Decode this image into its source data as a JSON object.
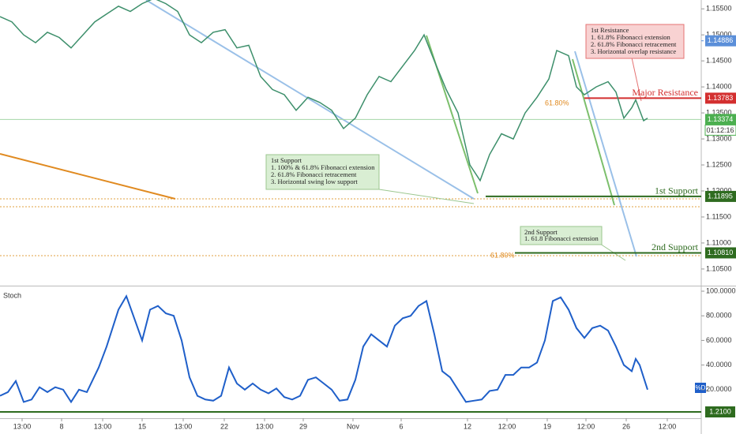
{
  "chart_data": [
    {
      "type": "line",
      "color": "#3d8f6b",
      "x": [
        0,
        3.75,
        7.5,
        11.25,
        15,
        18.75,
        22.5,
        26.25,
        30,
        33.75,
        37.5,
        41.25,
        45,
        48.75,
        52.5,
        56.25,
        60,
        63.75,
        67.5,
        71.25,
        75,
        78.75,
        82.5,
        86.25,
        90,
        93.75,
        97.5,
        101.25,
        105,
        108.75,
        112.5,
        116.25,
        120,
        123.75,
        127.5,
        131.25,
        134.25,
        137.5,
        141.25,
        145,
        148.75,
        152,
        155,
        158.75,
        162.5,
        166.25,
        170,
        173.75,
        176.25,
        180,
        182.5,
        185,
        188.75,
        192.5,
        195,
        197.5,
        200,
        201.25,
        203.75,
        205
      ],
      "values": [
        1.1535,
        1.1525,
        1.15,
        1.1485,
        1.1505,
        1.1495,
        1.1475,
        1.15,
        1.1525,
        1.154,
        1.1555,
        1.1545,
        1.156,
        1.157,
        1.156,
        1.1545,
        1.15,
        1.1485,
        1.1505,
        1.151,
        1.1475,
        1.148,
        1.142,
        1.1395,
        1.1385,
        1.1355,
        1.138,
        1.137,
        1.1355,
        1.132,
        1.134,
        1.1385,
        1.142,
        1.141,
        1.144,
        1.147,
        1.15,
        1.145,
        1.1395,
        1.135,
        1.125,
        1.122,
        1.127,
        1.131,
        1.13,
        1.135,
        1.138,
        1.1415,
        1.147,
        1.146,
        1.14,
        1.1385,
        1.14,
        1.141,
        1.139,
        1.134,
        1.136,
        1.1375,
        1.1335,
        1.134
      ],
      "xlim": [
        0,
        222
      ],
      "ylim": [
        1.1018,
        1.1567
      ],
      "yticks": [
        {
          "value": 1.155,
          "label": "1.15500"
        },
        {
          "value": 1.15,
          "label": "1.15000"
        },
        {
          "value": 1.145,
          "label": "1.14500"
        },
        {
          "value": 1.14,
          "label": "1.14000"
        },
        {
          "value": 1.135,
          "label": "1.13500"
        },
        {
          "value": 1.13,
          "label": "1.13000"
        },
        {
          "value": 1.125,
          "label": "1.12500"
        },
        {
          "value": 1.12,
          "label": "1.12000"
        },
        {
          "value": 1.115,
          "label": "1.11500"
        },
        {
          "value": 1.11,
          "label": "1.11000"
        },
        {
          "value": 1.105,
          "label": "1.10500"
        }
      ],
      "levels": [
        {
          "value": 1.14886,
          "label": "1.14886",
          "color": "#5b8fd9"
        },
        {
          "value": 1.13783,
          "label": "1.13783",
          "color": "#d32f2f",
          "name": "Major Resistance"
        },
        {
          "value": 1.13374,
          "label": "1.13374",
          "color": "#4caf50"
        },
        {
          "value": 1.11895,
          "label": "1.11895",
          "color": "#2e6b1f",
          "name": "1st Support"
        },
        {
          "value": 1.1081,
          "label": "1.10810",
          "color": "#2e6b1f",
          "name": "2nd Support"
        }
      ],
      "countdown": "01:12:16",
      "fib_labels": [
        "61.80%",
        "61.80%"
      ],
      "notes": [
        {
          "title": "1st Resistance",
          "lines": [
            "1. 61.8% Fibonacci extension",
            "2. 61.8% Fibonacci retracement",
            "3. Horizontal overlap resistance"
          ]
        },
        {
          "title": "1st Support",
          "lines": [
            "1. 100% & 61.8% Fibonacci extension",
            "2. 61.8% Fibonacci retracement",
            "3. Horizontal swing low support"
          ]
        },
        {
          "title": "2nd Support",
          "lines": [
            "1. 61.8 Fibonacci extension"
          ]
        }
      ]
    },
    {
      "type": "line",
      "title": "Stoch",
      "color": "#1f5fc9",
      "legend": "%D",
      "level_label": "1.2100",
      "x": [
        0,
        2.5,
        5,
        7.5,
        10,
        12.5,
        15,
        17.5,
        20,
        22.5,
        25,
        27.5,
        31.25,
        33.75,
        37.5,
        40,
        42.5,
        45,
        47.5,
        50,
        52.5,
        55,
        57.5,
        60,
        62.5,
        65,
        67.5,
        70,
        72.5,
        75,
        77.5,
        80,
        82.5,
        85,
        87.5,
        90,
        92.5,
        95,
        97.5,
        100,
        102.5,
        105,
        107.5,
        110,
        112.5,
        115,
        117.5,
        120,
        122.5,
        125,
        127.5,
        130,
        132.5,
        135,
        137.5,
        140,
        142.5,
        145,
        147.5,
        150,
        152.5,
        155,
        157.5,
        160,
        162.5,
        165,
        167.5,
        170,
        172.5,
        175,
        177.5,
        180,
        182.5,
        185,
        187.5,
        190,
        192.5,
        195,
        197.5,
        200,
        201.25,
        202.5,
        205
      ],
      "values": [
        15,
        18,
        27,
        10,
        12,
        22,
        18,
        22,
        20,
        10,
        20,
        18,
        38,
        55,
        85,
        96,
        78,
        60,
        85,
        88,
        82,
        80,
        60,
        30,
        15,
        12,
        11,
        15,
        38,
        25,
        20,
        25,
        20,
        17,
        21,
        14,
        12,
        15,
        28,
        30,
        25,
        20,
        11,
        12,
        28,
        55,
        65,
        60,
        55,
        72,
        78,
        80,
        88,
        92,
        65,
        35,
        30,
        20,
        10,
        11,
        12,
        19,
        20,
        32,
        32,
        38,
        38,
        42,
        60,
        92,
        95,
        85,
        70,
        62,
        70,
        72,
        68,
        55,
        40,
        35,
        45,
        40,
        20
      ],
      "xlim": [
        0,
        222
      ],
      "ylim": [
        -3.2,
        104.5
      ],
      "yticks": [
        {
          "value": 100,
          "label": "100.0000"
        },
        {
          "value": 80,
          "label": "80.0000"
        },
        {
          "value": 60,
          "label": "60.0000"
        },
        {
          "value": 40,
          "label": "40.0000"
        },
        {
          "value": 20,
          "label": "20.0000"
        }
      ],
      "xticks": [
        {
          "value": 7,
          "label": "13:00"
        },
        {
          "value": 19.5,
          "label": "8"
        },
        {
          "value": 32.5,
          "label": "13:00"
        },
        {
          "value": 45,
          "label": "15"
        },
        {
          "value": 58,
          "label": "13:00"
        },
        {
          "value": 71,
          "label": "22"
        },
        {
          "value": 83.75,
          "label": "13:00"
        },
        {
          "value": 96,
          "label": "29"
        },
        {
          "value": 111.75,
          "label": "Nov"
        },
        {
          "value": 127,
          "label": "6"
        },
        {
          "value": 148,
          "label": "12"
        },
        {
          "value": 160.5,
          "label": "12:00"
        },
        {
          "value": 173.25,
          "label": "19"
        },
        {
          "value": 185.5,
          "label": "12:00"
        },
        {
          "value": 198.25,
          "label": "26"
        },
        {
          "value": 211.25,
          "label": "12:00"
        }
      ]
    }
  ]
}
